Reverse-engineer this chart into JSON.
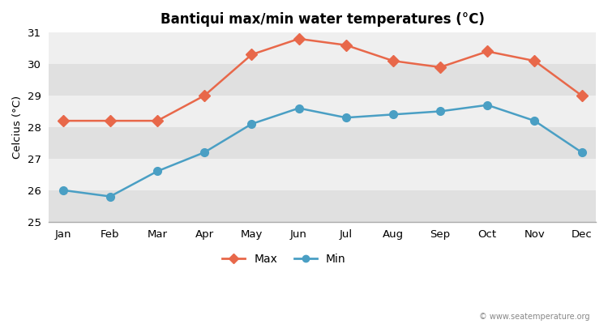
{
  "months": [
    "Jan",
    "Feb",
    "Mar",
    "Apr",
    "May",
    "Jun",
    "Jul",
    "Aug",
    "Sep",
    "Oct",
    "Nov",
    "Dec"
  ],
  "max_temps": [
    28.2,
    28.2,
    28.2,
    29.0,
    30.3,
    30.8,
    30.6,
    30.1,
    29.9,
    30.4,
    30.1,
    29.0
  ],
  "min_temps": [
    26.0,
    25.8,
    26.6,
    27.2,
    28.1,
    28.6,
    28.3,
    28.4,
    28.5,
    28.7,
    28.2,
    27.2
  ],
  "title": "Bantiqui max/min water temperatures (°C)",
  "ylabel": "Celcius (°C)",
  "ylim": [
    25,
    31
  ],
  "yticks": [
    25,
    26,
    27,
    28,
    29,
    30,
    31
  ],
  "max_color": "#e8684a",
  "min_color": "#4a9fc4",
  "bg_color": "#ffffff",
  "band_light": "#efefef",
  "band_dark": "#e0e0e0",
  "watermark": "© www.seatemperature.org",
  "legend_max": "Max",
  "legend_min": "Min"
}
